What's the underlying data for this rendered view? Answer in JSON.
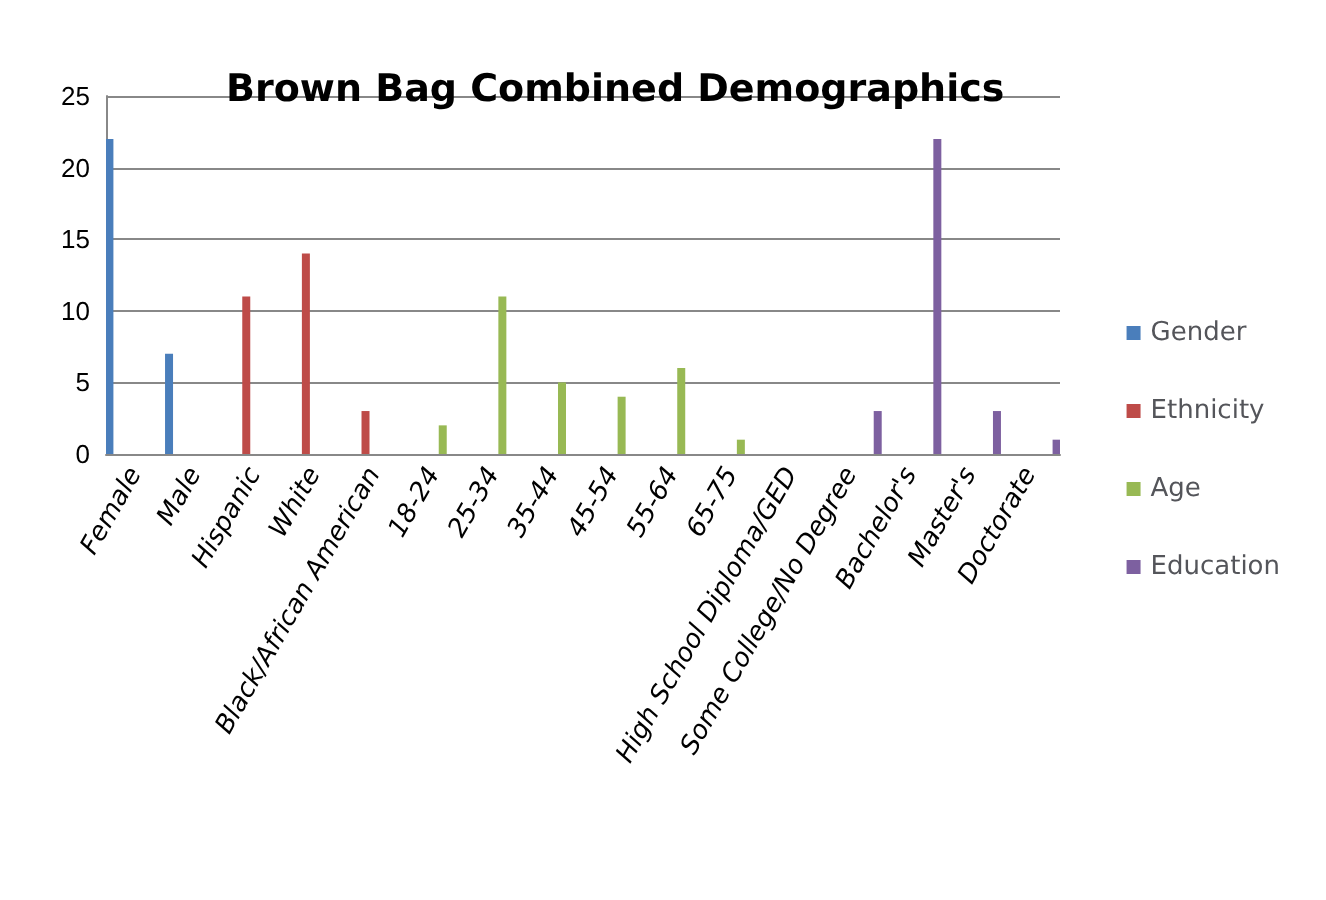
{
  "chart_data": {
    "type": "bar",
    "title": "Brown Bag Combined Demographics",
    "categories": [
      "Female",
      "Male",
      "Hispanic",
      "White",
      "Black/African American",
      "18-24",
      "25-34",
      "35-44",
      "45-54",
      "55-64",
      "65-75",
      "High School Diploma/GED",
      "Some College/No Degree",
      "Bachelor's",
      "Master's",
      "Doctorate"
    ],
    "series": [
      {
        "name": "Gender",
        "color": "#4a7ebb",
        "values": [
          22,
          7,
          null,
          null,
          null,
          null,
          null,
          null,
          null,
          null,
          null,
          null,
          null,
          null,
          null,
          null
        ]
      },
      {
        "name": "Ethnicity",
        "color": "#be4b48",
        "values": [
          null,
          null,
          11,
          14,
          3,
          null,
          null,
          null,
          null,
          null,
          null,
          null,
          null,
          null,
          null,
          null
        ]
      },
      {
        "name": "Age",
        "color": "#98b954",
        "values": [
          null,
          null,
          null,
          null,
          null,
          2,
          11,
          5,
          4,
          6,
          1,
          null,
          null,
          null,
          null,
          null
        ]
      },
      {
        "name": "Education",
        "color": "#7d60a0",
        "values": [
          null,
          null,
          null,
          null,
          null,
          null,
          null,
          null,
          null,
          null,
          null,
          0,
          3,
          22,
          3,
          1
        ]
      }
    ],
    "ylim": [
      0,
      25
    ],
    "yticks": [
      0,
      5,
      10,
      15,
      20,
      25
    ],
    "grid": "y",
    "legend": "right"
  }
}
